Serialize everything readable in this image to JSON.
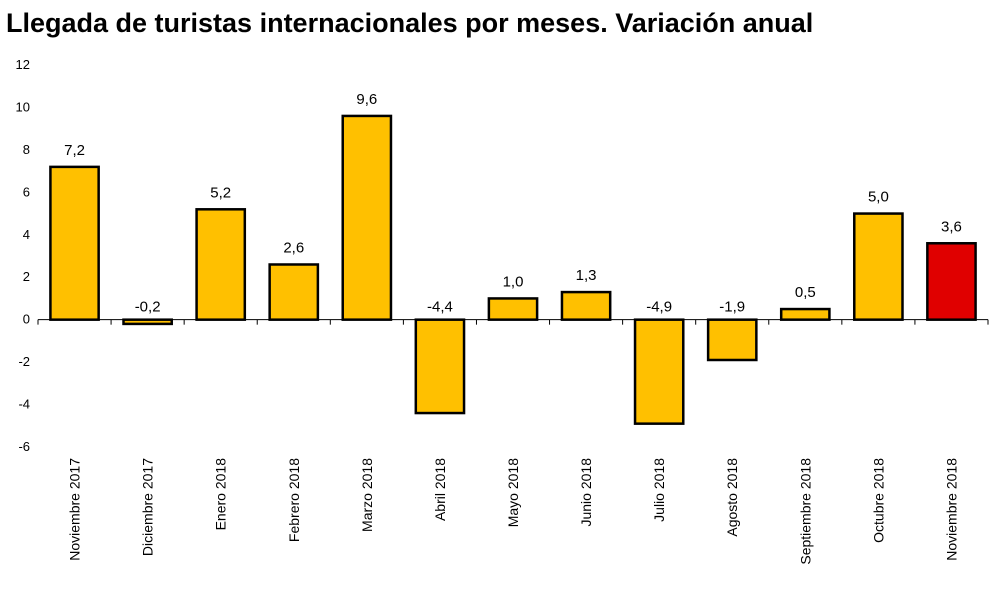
{
  "chart_data": {
    "type": "bar",
    "title": "Llegada de turistas internacionales por meses. Variación anual",
    "xlabel": "",
    "ylabel": "",
    "ylim": [
      -6,
      12
    ],
    "yticks": [
      -6,
      -4,
      -2,
      0,
      2,
      4,
      6,
      8,
      10,
      12
    ],
    "ytick_labels": [
      "-6",
      "-4",
      "-2",
      "0",
      "2",
      "4",
      "6",
      "8",
      "10",
      "12"
    ],
    "grid": false,
    "legend": "none",
    "categories": [
      "Noviembre 2017",
      "Diciembre 2017",
      "Enero 2018",
      "Febrero 2018",
      "Marzo 2018",
      "Abril 2018",
      "Mayo 2018",
      "Junio 2018",
      "Julio 2018",
      "Agosto 2018",
      "Septiembre 2018",
      "Octubre 2018",
      "Noviembre 2018"
    ],
    "values": [
      7.2,
      -0.2,
      5.2,
      2.6,
      9.6,
      -4.4,
      1.0,
      1.3,
      -4.9,
      -1.9,
      0.5,
      5.0,
      3.6
    ],
    "value_labels": [
      "7,2",
      "-0,2",
      "5,2",
      "2,6",
      "9,6",
      "-4,4",
      "1,0",
      "1,3",
      "-4,9",
      "-1,9",
      "0,5",
      "5,0",
      "3,6"
    ],
    "colors": {
      "bar": "#FFC000",
      "highlight": "#E00000",
      "outline": "#000000",
      "highlight_index": 12
    }
  }
}
